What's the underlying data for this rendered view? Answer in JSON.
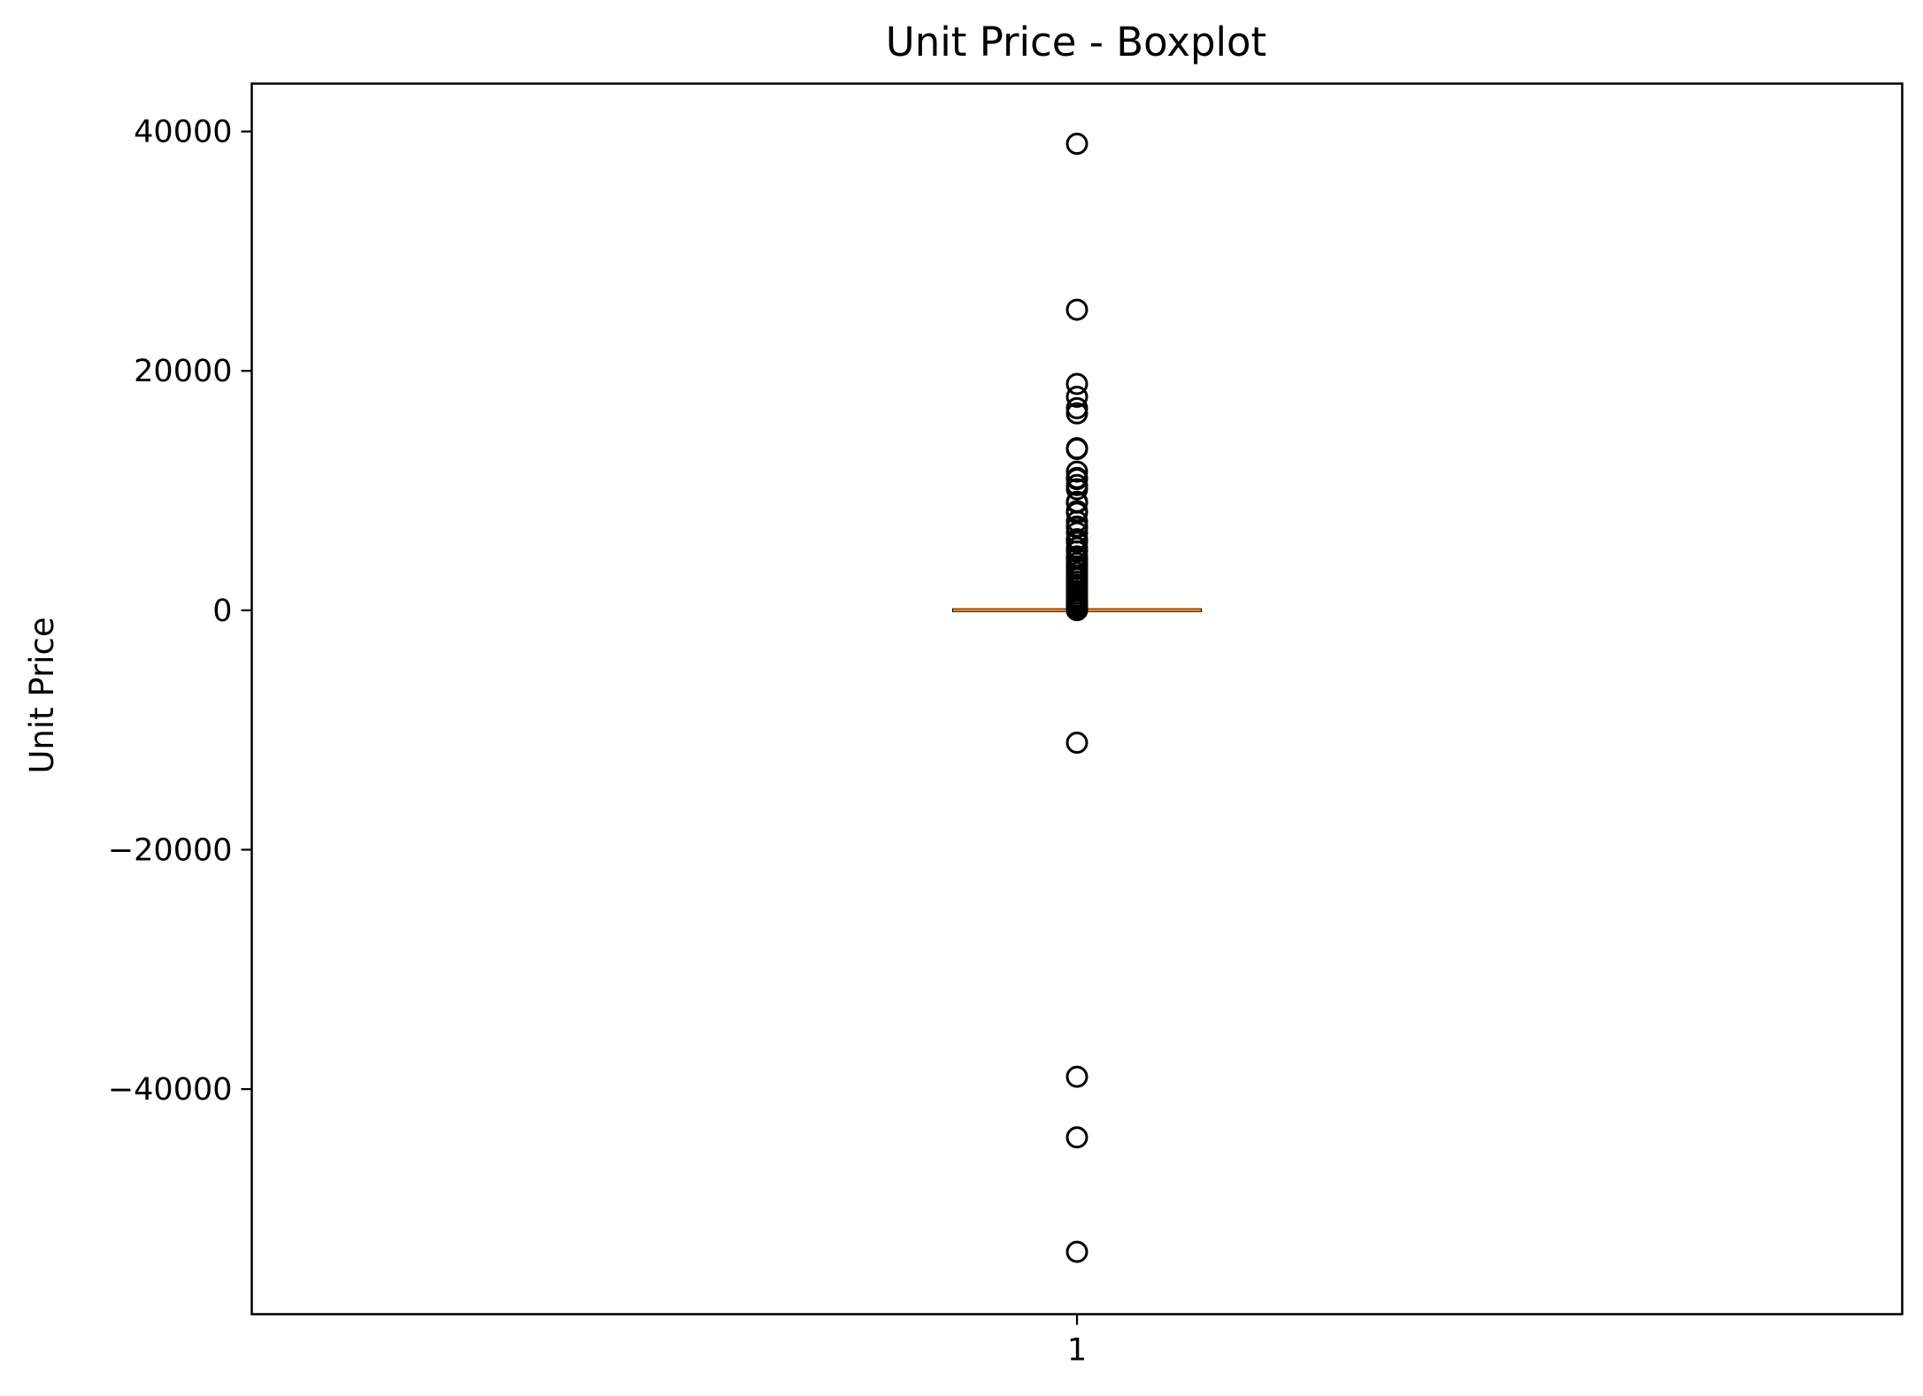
{
  "chart_data": {
    "type": "boxplot",
    "title": "Unit Price - Boxplot",
    "xlabel": "",
    "ylabel": "Unit Price",
    "categories": [
      "1"
    ],
    "ylim": [
      -58800,
      44000
    ],
    "yticks": [
      -40000,
      -20000,
      0,
      20000,
      40000
    ],
    "ytick_labels": [
      "−40000",
      "−20000",
      "0",
      "20000",
      "40000"
    ],
    "grid": false,
    "box": {
      "q1": 1.25,
      "median": 2.1,
      "q3": 4.13,
      "whisker_low": 0.0,
      "whisker_high": 8.45
    },
    "outliers": [
      38970,
      25111,
      18911,
      17836,
      16888,
      16453,
      13541,
      13474,
      11586,
      11062,
      10953,
      10468,
      10118,
      9066,
      8985,
      8286,
      8142,
      7427,
      7006,
      6930,
      6497,
      5942,
      5877,
      5693,
      5225,
      4921,
      4505,
      4287,
      3949,
      3677,
      3441,
      3155,
      2878,
      2653,
      2382,
      2118,
      1867,
      1599,
      1366,
      1136,
      938,
      742,
      583,
      441,
      319,
      214,
      142,
      86,
      49,
      22,
      12,
      -11062,
      -38970,
      -44031,
      -53594
    ],
    "colors": {
      "box": "#000000",
      "median": "#ff7f0e",
      "outlier": "#000000"
    }
  }
}
